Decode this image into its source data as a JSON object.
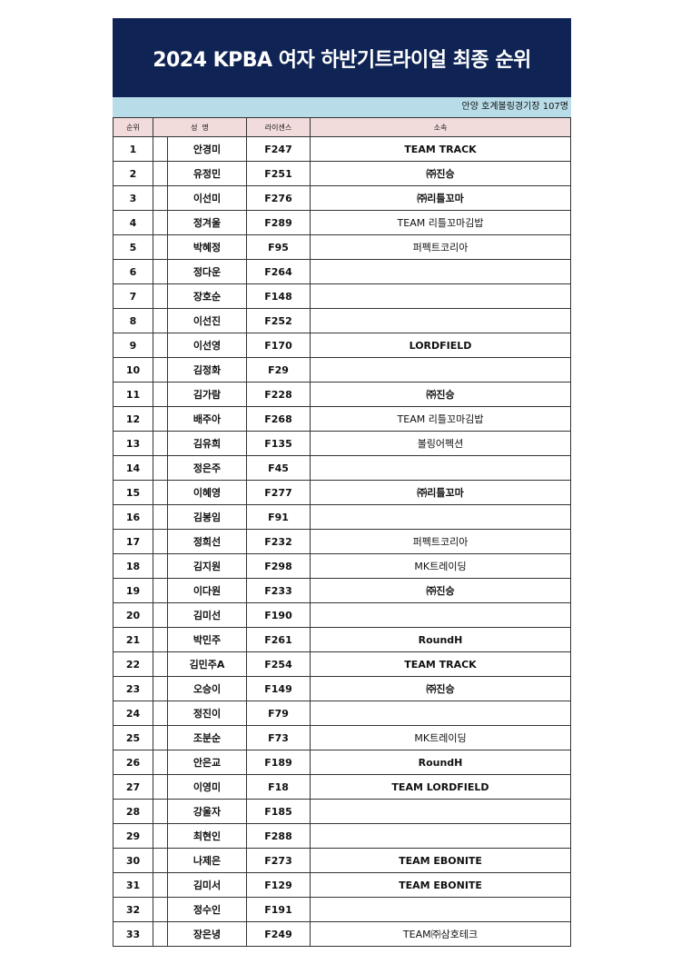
{
  "title": "2024 KPBA 여자 하반기트라이얼 최종 순위",
  "subtitle": "안양 호계볼링경기장 107명",
  "headers": {
    "rank": "순위",
    "name": "성  명",
    "license": "라이센스",
    "affiliation": "소속"
  },
  "colors": {
    "title_bg": "#0f2454",
    "subtitle_bg": "#b9dde8",
    "header_bg": "#f2dcdb"
  },
  "rows": [
    {
      "rank": "1",
      "name": "안경미",
      "license": "F247",
      "affiliation": "TEAM TRACK"
    },
    {
      "rank": "2",
      "name": "유정민",
      "license": "F251",
      "affiliation": "㈜진승"
    },
    {
      "rank": "3",
      "name": "이선미",
      "license": "F276",
      "affiliation": "㈜리틀꼬마"
    },
    {
      "rank": "4",
      "name": "정겨울",
      "license": "F289",
      "affiliation": "TEAM 리틀꼬마김밥"
    },
    {
      "rank": "5",
      "name": "박혜정",
      "license": "F95",
      "affiliation": "퍼펙트코리아"
    },
    {
      "rank": "6",
      "name": "정다운",
      "license": "F264",
      "affiliation": ""
    },
    {
      "rank": "7",
      "name": "장호순",
      "license": "F148",
      "affiliation": ""
    },
    {
      "rank": "8",
      "name": "이선진",
      "license": "F252",
      "affiliation": ""
    },
    {
      "rank": "9",
      "name": "이선영",
      "license": "F170",
      "affiliation": "LORDFIELD"
    },
    {
      "rank": "10",
      "name": "김정화",
      "license": "F29",
      "affiliation": ""
    },
    {
      "rank": "11",
      "name": "김가람",
      "license": "F228",
      "affiliation": "㈜진승"
    },
    {
      "rank": "12",
      "name": "배주아",
      "license": "F268",
      "affiliation": "TEAM 리틀꼬마김밥"
    },
    {
      "rank": "13",
      "name": "김유희",
      "license": "F135",
      "affiliation": "볼링어펙션"
    },
    {
      "rank": "14",
      "name": "정은주",
      "license": "F45",
      "affiliation": ""
    },
    {
      "rank": "15",
      "name": "이혜영",
      "license": "F277",
      "affiliation": "㈜리틀꼬마"
    },
    {
      "rank": "16",
      "name": "김봉임",
      "license": "F91",
      "affiliation": ""
    },
    {
      "rank": "17",
      "name": "정희선",
      "license": "F232",
      "affiliation": "퍼펙트코리아"
    },
    {
      "rank": "18",
      "name": "김지원",
      "license": "F298",
      "affiliation": "MK트레이딩"
    },
    {
      "rank": "19",
      "name": "이다원",
      "license": "F233",
      "affiliation": "㈜진승"
    },
    {
      "rank": "20",
      "name": "김미선",
      "license": "F190",
      "affiliation": ""
    },
    {
      "rank": "21",
      "name": "박민주",
      "license": "F261",
      "affiliation": "RoundH"
    },
    {
      "rank": "22",
      "name": "김민주A",
      "license": "F254",
      "affiliation": "TEAM TRACK"
    },
    {
      "rank": "23",
      "name": "오승이",
      "license": "F149",
      "affiliation": "㈜진승"
    },
    {
      "rank": "24",
      "name": "정진이",
      "license": "F79",
      "affiliation": ""
    },
    {
      "rank": "25",
      "name": "조분순",
      "license": "F73",
      "affiliation": "MK트레이딩"
    },
    {
      "rank": "26",
      "name": "안은교",
      "license": "F189",
      "affiliation": "RoundH"
    },
    {
      "rank": "27",
      "name": "이영미",
      "license": "F18",
      "affiliation": "TEAM LORDFIELD"
    },
    {
      "rank": "28",
      "name": "강울자",
      "license": "F185",
      "affiliation": ""
    },
    {
      "rank": "29",
      "name": "최현인",
      "license": "F288",
      "affiliation": ""
    },
    {
      "rank": "30",
      "name": "나제은",
      "license": "F273",
      "affiliation": "TEAM EBONITE"
    },
    {
      "rank": "31",
      "name": "김미서",
      "license": "F129",
      "affiliation": "TEAM EBONITE"
    },
    {
      "rank": "32",
      "name": "정수인",
      "license": "F191",
      "affiliation": ""
    },
    {
      "rank": "33",
      "name": "장은녕",
      "license": "F249",
      "affiliation": "TEAM㈜삼호테크"
    }
  ]
}
